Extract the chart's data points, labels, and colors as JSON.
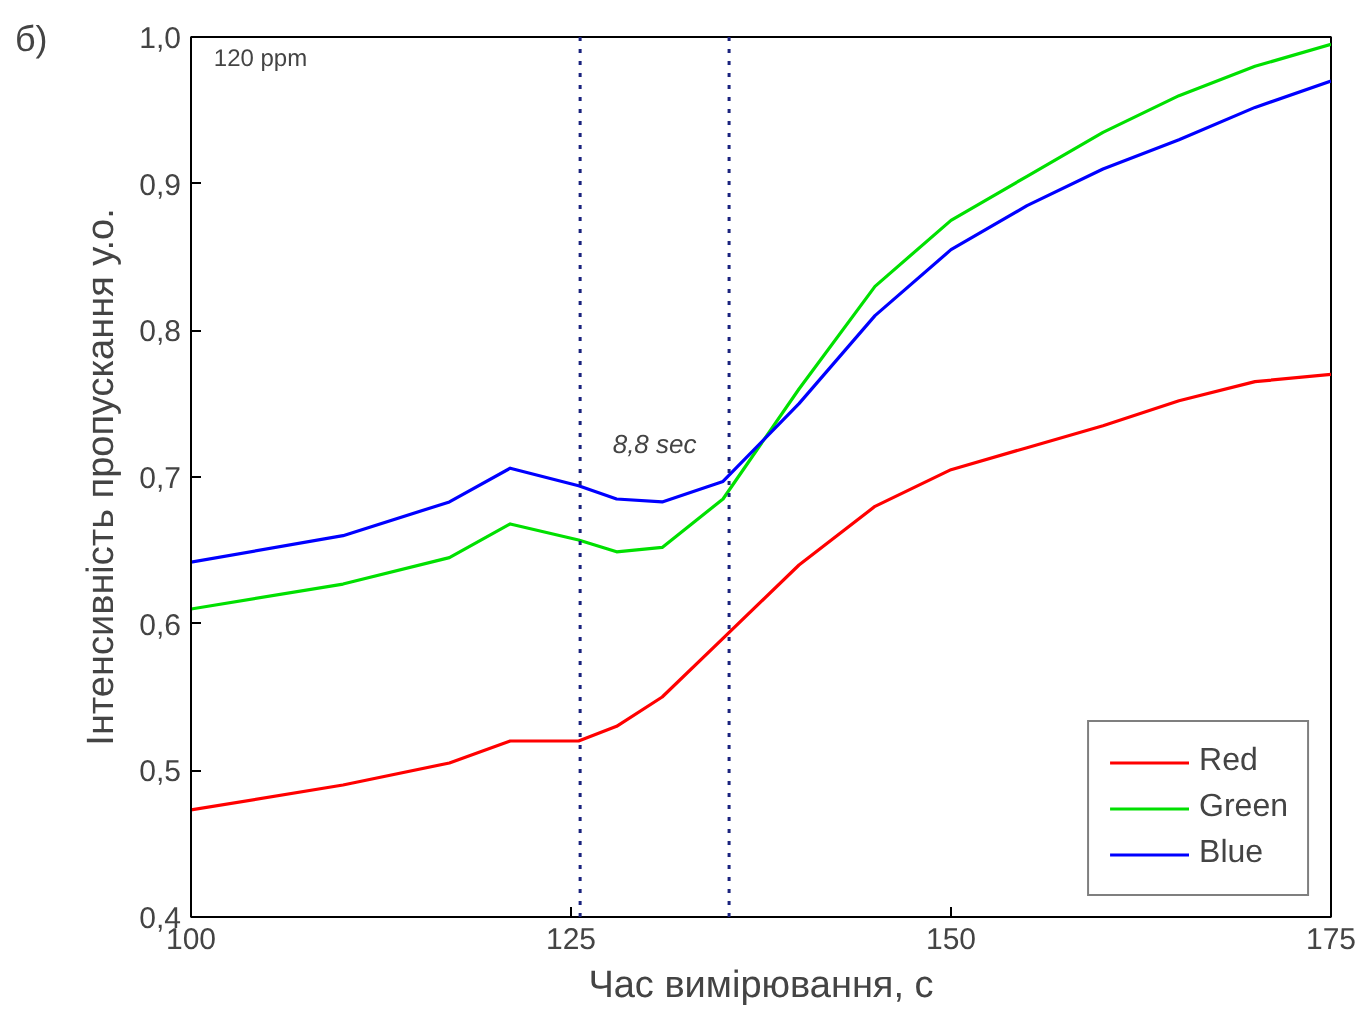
{
  "chart_data": {
    "type": "line",
    "xlabel": "Час вимірювання, с",
    "ylabel": "Інтенсивність пропускання у.о.",
    "annotations": [
      "б)",
      "120 ppm",
      "8,8 sec"
    ],
    "xlim": [
      100,
      175
    ],
    "xticks": [
      100,
      125,
      150,
      175
    ],
    "ylim": [
      0.4,
      1.0
    ],
    "yticks": [
      {
        "value": 0.4,
        "label": "0,4"
      },
      {
        "value": 0.5,
        "label": "0,5"
      },
      {
        "value": 0.6,
        "label": "0,6"
      },
      {
        "value": 0.7,
        "label": "0,7"
      },
      {
        "value": 0.8,
        "label": "0,8"
      },
      {
        "value": 0.9,
        "label": "0,9"
      },
      {
        "value": 1.0,
        "label": "1,0"
      }
    ],
    "grid": false,
    "legend": "bottom right",
    "line_style": "solid",
    "ref_lines": [
      {
        "axis": "x",
        "value": 125.6,
        "color": "#1a237e",
        "line_style": "dotted"
      },
      {
        "axis": "x",
        "value": 135.4,
        "color": "#1a237e",
        "line_style": "dotted"
      }
    ],
    "x": [
      100,
      110,
      117,
      121,
      125.5,
      128,
      131,
      135,
      140,
      145,
      150,
      155,
      160,
      165,
      170,
      175
    ],
    "series": [
      {
        "name": "Red",
        "color": "#ff0000",
        "values": [
          0.473,
          0.49,
          0.505,
          0.52,
          0.52,
          0.53,
          0.55,
          0.59,
          0.64,
          0.68,
          0.705,
          0.72,
          0.735,
          0.752,
          0.765,
          0.77
        ]
      },
      {
        "name": "Green",
        "color": "#00e000",
        "values": [
          0.61,
          0.627,
          0.645,
          0.668,
          0.657,
          0.649,
          0.652,
          0.685,
          0.76,
          0.83,
          0.875,
          0.905,
          0.935,
          0.96,
          0.98,
          0.995
        ]
      },
      {
        "name": "Blue",
        "color": "#0000ff",
        "values": [
          0.642,
          0.66,
          0.683,
          0.706,
          0.694,
          0.685,
          0.683,
          0.697,
          0.75,
          0.81,
          0.855,
          0.885,
          0.91,
          0.93,
          0.952,
          0.97
        ]
      }
    ]
  }
}
